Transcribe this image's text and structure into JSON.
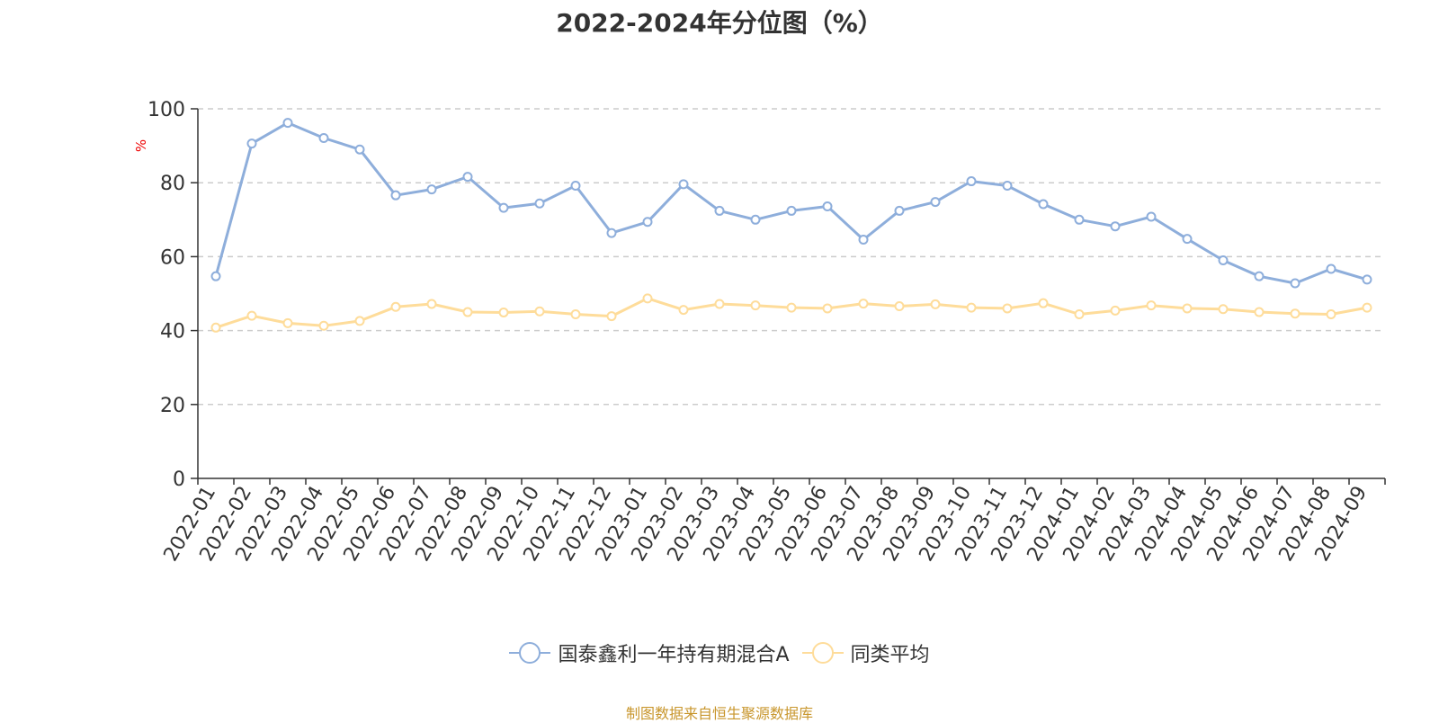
{
  "title": "2022-2024年分位图（%）",
  "source": "制图数据来自恒生聚源数据库",
  "colors": {
    "series1": "#8eaedb",
    "series2": "#fedc9a",
    "source_text": "#c8962c",
    "unit_label": "#ee0000"
  },
  "chart_data": {
    "type": "line",
    "title": "2022-2024年分位图（%）",
    "ylabel": "%",
    "ylim": [
      0,
      100
    ],
    "yticks": [
      0,
      20,
      40,
      60,
      80,
      100
    ],
    "grid": true,
    "legend_position": "bottom",
    "categories": [
      "2022-01",
      "2022-02",
      "2022-03",
      "2022-04",
      "2022-05",
      "2022-06",
      "2022-07",
      "2022-08",
      "2022-09",
      "2022-10",
      "2022-11",
      "2022-12",
      "2023-01",
      "2023-02",
      "2023-03",
      "2023-04",
      "2023-05",
      "2023-06",
      "2023-07",
      "2023-08",
      "2023-09",
      "2023-10",
      "2023-11",
      "2023-12",
      "2024-01",
      "2024-02",
      "2024-03",
      "2024-04",
      "2024-05",
      "2024-06",
      "2024-07",
      "2024-08",
      "2024-09"
    ],
    "series": [
      {
        "name": "国泰鑫利一年持有期混合A",
        "values": [
          54.7,
          90.6,
          96.2,
          92.1,
          89.0,
          76.6,
          78.2,
          81.6,
          73.2,
          74.4,
          79.2,
          66.4,
          69.4,
          79.6,
          72.4,
          70.0,
          72.4,
          73.6,
          64.6,
          72.4,
          74.8,
          80.4,
          79.2,
          74.2,
          70.0,
          68.2,
          70.8,
          64.8,
          59.0,
          54.7,
          52.8,
          56.7,
          53.8
        ]
      },
      {
        "name": "同类平均",
        "values": [
          40.8,
          44.0,
          42.0,
          41.3,
          42.6,
          46.4,
          47.2,
          45.0,
          44.9,
          45.2,
          44.4,
          43.9,
          48.7,
          45.6,
          47.2,
          46.8,
          46.2,
          46.0,
          47.3,
          46.6,
          47.1,
          46.2,
          46.0,
          47.4,
          44.4,
          45.4,
          46.8,
          46.0,
          45.8,
          45.0,
          44.6,
          44.4,
          46.2
        ]
      }
    ]
  }
}
